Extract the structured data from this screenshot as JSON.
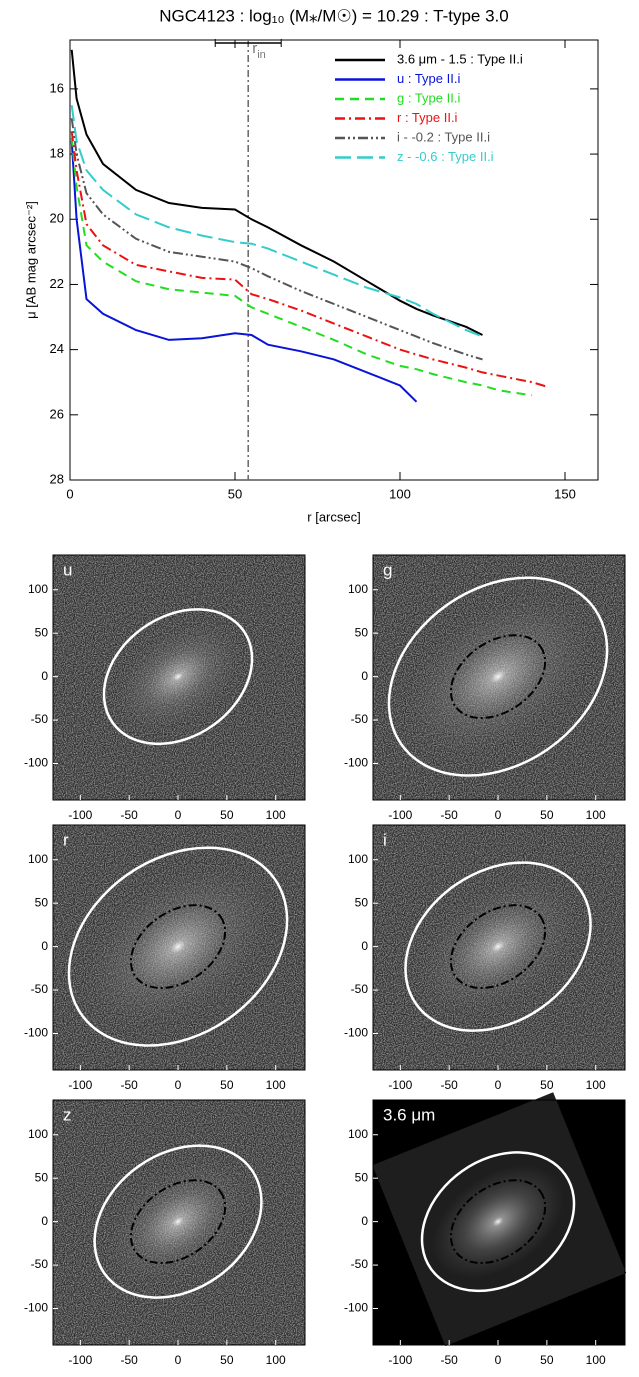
{
  "chart_data": [
    {
      "type": "line",
      "title": "NGC4123 : log₁₀ (M⁎/M☉) = 10.29 : T-type 3.0",
      "xlabel": "r [arcsec]",
      "ylabel": "μ [AB mag arcsec⁻²]",
      "xlim": [
        0,
        160
      ],
      "ylim": [
        28,
        14.5
      ],
      "xticks": [
        0,
        50,
        100,
        150
      ],
      "yticks": [
        16,
        18,
        20,
        22,
        24,
        26,
        28
      ],
      "legend": "upper right",
      "annotation": {
        "text": "r",
        "sub": "in",
        "x": 54,
        "range": [
          44,
          64
        ]
      },
      "x": [
        0.5,
        2,
        5,
        10,
        20,
        30,
        40,
        50,
        55,
        60,
        70,
        80,
        90,
        100,
        105,
        110,
        120,
        125,
        130,
        140,
        145
      ],
      "series": [
        {
          "name": "3.6 μm - 1.5 : Type II.i",
          "color": "#000000",
          "dash": "solid",
          "values": [
            14.8,
            16.3,
            17.4,
            18.3,
            19.1,
            19.5,
            19.65,
            19.7,
            20.0,
            20.25,
            20.8,
            21.3,
            21.9,
            22.5,
            22.75,
            22.95,
            23.3,
            23.55,
            null,
            null,
            null
          ]
        },
        {
          "name": "u : Type II.i",
          "color": "#0a14d8",
          "dash": "solid",
          "values": [
            17.6,
            20.0,
            22.45,
            22.9,
            23.4,
            23.7,
            23.65,
            23.5,
            23.55,
            23.85,
            24.05,
            24.3,
            24.7,
            25.1,
            25.6,
            null,
            null,
            null,
            null,
            null,
            null
          ]
        },
        {
          "name": "g : Type II.i",
          "color": "#22dd22",
          "dash": "dash",
          "values": [
            17.5,
            19.0,
            20.8,
            21.3,
            21.9,
            22.15,
            22.25,
            22.35,
            22.7,
            22.9,
            23.3,
            23.7,
            24.15,
            24.5,
            24.6,
            24.75,
            25.0,
            25.1,
            25.25,
            25.4,
            null
          ]
        },
        {
          "name": "r : Type II.i",
          "color": "#ee1111",
          "dash": "dashdot",
          "values": [
            17.3,
            18.5,
            20.15,
            20.8,
            21.4,
            21.6,
            21.8,
            21.85,
            22.3,
            22.45,
            22.8,
            23.2,
            23.6,
            24.0,
            24.15,
            24.3,
            24.55,
            24.7,
            24.8,
            25.0,
            25.15
          ]
        },
        {
          "name": "i - -0.2 : Type II.i",
          "color": "#555555",
          "dash": "dashdotdot",
          "values": [
            16.9,
            18.0,
            19.2,
            19.85,
            20.6,
            21.0,
            21.15,
            21.3,
            21.5,
            21.75,
            22.2,
            22.6,
            23.0,
            23.4,
            23.6,
            23.8,
            24.15,
            24.3,
            null,
            null,
            null
          ]
        },
        {
          "name": "z - -0.6 : Type II.i",
          "color": "#33cccc",
          "dash": "longdash",
          "values": [
            16.5,
            17.6,
            18.5,
            19.1,
            19.85,
            20.25,
            20.5,
            20.7,
            20.75,
            20.9,
            21.3,
            21.7,
            22.1,
            22.4,
            22.6,
            22.9,
            23.4,
            23.6,
            null,
            null,
            null
          ]
        }
      ]
    },
    {
      "type": "image",
      "title": "u",
      "xlim": [
        -128,
        130
      ],
      "ylim": [
        -142,
        140
      ],
      "xticks": [
        -100,
        -50,
        0,
        50,
        100
      ],
      "yticks": [
        100,
        50,
        0,
        -50,
        -100
      ]
    },
    {
      "type": "image",
      "title": "g",
      "xlim": [
        -128,
        130
      ],
      "ylim": [
        -142,
        140
      ],
      "xticks": [
        -100,
        -50,
        0,
        50,
        100
      ],
      "yticks": [
        100,
        50,
        0,
        -50,
        -100
      ]
    },
    {
      "type": "image",
      "title": "r",
      "xlim": [
        -128,
        130
      ],
      "ylim": [
        -142,
        140
      ],
      "xticks": [
        -100,
        -50,
        0,
        50,
        100
      ],
      "yticks": [
        100,
        50,
        0,
        -50,
        -100
      ]
    },
    {
      "type": "image",
      "title": "i",
      "xlim": [
        -128,
        130
      ],
      "ylim": [
        -142,
        140
      ],
      "xticks": [
        -100,
        -50,
        0,
        50,
        100
      ],
      "yticks": [
        100,
        50,
        0,
        -50,
        -100
      ]
    },
    {
      "type": "image",
      "title": "z",
      "xlim": [
        -128,
        130
      ],
      "ylim": [
        -142,
        140
      ],
      "xticks": [
        -100,
        -50,
        0,
        50,
        100
      ],
      "yticks": [
        100,
        50,
        0,
        -50,
        -100
      ]
    },
    {
      "type": "image",
      "title": "3.6 μm",
      "xlim": [
        -128,
        130
      ],
      "ylim": [
        -142,
        140
      ],
      "xticks": [
        -100,
        -50,
        0,
        50,
        100
      ],
      "yticks": [
        100,
        50,
        0,
        -50,
        -100
      ]
    }
  ]
}
